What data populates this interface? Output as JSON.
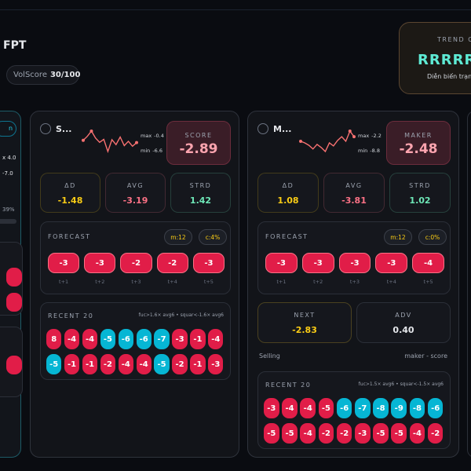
{
  "header": {
    "ticker": "FPT",
    "volscore_label": "VolScore",
    "volscore": "30/100"
  },
  "trend": {
    "title": "TREND C",
    "signal": "RRRRR",
    "caption": "Diễn biến trạn"
  },
  "side_card": {
    "tag": "n",
    "line1": "x 4.0",
    "line2": "-7.0",
    "pct": "39%"
  },
  "cards": [
    {
      "title": "S...",
      "spark": {
        "max_label": "max",
        "max": -0.4,
        "min_label": "min",
        "min": -6.6,
        "color": "#f87171",
        "values": [
          -3.2,
          -2.0,
          -0.4,
          -2.5,
          -3.8,
          -2.9,
          -6.6,
          -3.0,
          -4.5,
          -2.2,
          -4.8,
          -3.5,
          -5.0,
          -3.9
        ]
      },
      "score_label": "SCORE",
      "score": -2.89,
      "stats": [
        {
          "label": "ΔD",
          "value": -1.48,
          "color": "#facc15"
        },
        {
          "label": "AVG",
          "value": -3.19,
          "color": "#fb7185"
        },
        {
          "label": "STRD",
          "value": 1.42,
          "color": "#6ee7b7"
        }
      ],
      "forecast": {
        "title": "FORECAST",
        "badges": [
          "m:12",
          "c:4%"
        ],
        "values": [
          -3,
          -3,
          -2,
          -2,
          -3
        ],
        "steps": [
          "t+1",
          "t+2",
          "t+3",
          "t+4",
          "t+5"
        ]
      },
      "recent": {
        "title": "RECENT 20",
        "legend": "fuc>1.6× avg6 • squar<-1.6× avg6",
        "rows": [
          [
            8,
            -4,
            -4,
            -5,
            -6,
            -6,
            -7,
            -3,
            -1,
            -4
          ],
          [
            -5,
            -1,
            -1,
            -2,
            -4,
            -4,
            -5,
            -2,
            -1,
            -3
          ]
        ],
        "tones": [
          [
            "#e11d48",
            "#e11d48",
            "#e11d48",
            "#06b6d4",
            "#06b6d4",
            "#06b6d4",
            "#06b6d4",
            "#e11d48",
            "#e11d48",
            "#e11d48"
          ],
          [
            "#06b6d4",
            "#e11d48",
            "#e11d48",
            "#e11d48",
            "#e11d48",
            "#e11d48",
            "#06b6d4",
            "#e11d48",
            "#e11d48",
            "#e11d48"
          ]
        ]
      }
    },
    {
      "title": "M...",
      "spark": {
        "max_label": "max",
        "max": -2.2,
        "min_label": "min",
        "min": -8.8,
        "color": "#f87171",
        "values": [
          -5.5,
          -6.0,
          -6.8,
          -8.0,
          -6.5,
          -7.5,
          -8.8,
          -6.0,
          -7.0,
          -5.2,
          -4.0,
          -5.5,
          -2.2,
          -4.0
        ]
      },
      "score_label": "MAKER",
      "score": -2.48,
      "stats": [
        {
          "label": "ΔD",
          "value": 1.08,
          "color": "#facc15"
        },
        {
          "label": "AVG",
          "value": -3.81,
          "color": "#fb7185"
        },
        {
          "label": "STRD",
          "value": 1.02,
          "color": "#6ee7b7"
        }
      ],
      "forecast": {
        "title": "FORECAST",
        "badges": [
          "m:12",
          "c:0%"
        ],
        "values": [
          -3,
          -3,
          -3,
          -3,
          -4
        ],
        "steps": [
          "t+1",
          "t+2",
          "t+3",
          "t+4",
          "t+5"
        ]
      },
      "next": [
        {
          "label": "NEXT",
          "value": -2.83,
          "color": "#facc15"
        },
        {
          "label": "ADV",
          "value": "0.40",
          "color": "#e5e7eb"
        }
      ],
      "footer": {
        "left": "Selling",
        "right": "maker - score"
      },
      "recent": {
        "title": "RECENT 20",
        "legend": "fuc>1.5× avg6 • squar<-1.5× avg6",
        "rows": [
          [
            -3,
            -4,
            -4,
            -5,
            -6,
            -7,
            -8,
            -9,
            -8,
            -6
          ],
          [
            -5,
            -5,
            -4,
            -2,
            -2,
            -3,
            -5,
            -5,
            -4,
            -2
          ]
        ],
        "tones": [
          [
            "#e11d48",
            "#e11d48",
            "#e11d48",
            "#e11d48",
            "#06b6d4",
            "#06b6d4",
            "#06b6d4",
            "#06b6d4",
            "#06b6d4",
            "#06b6d4"
          ],
          [
            "#e11d48",
            "#e11d48",
            "#e11d48",
            "#e11d48",
            "#e11d48",
            "#e11d48",
            "#e11d48",
            "#e11d48",
            "#e11d48",
            "#e11d48"
          ]
        ]
      }
    }
  ]
}
